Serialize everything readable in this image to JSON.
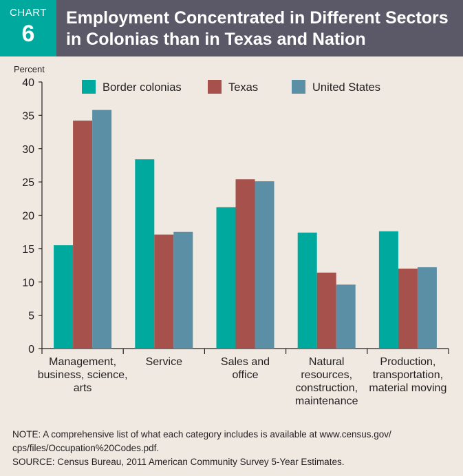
{
  "header": {
    "badge_word": "CHART",
    "badge_number": "6",
    "title_line1": "Employment Concentrated in Different Sectors",
    "title_line2": "in Colonias than in Texas and Nation"
  },
  "colors": {
    "header_bg": "#5b5868",
    "badge_bg": "#00a99d",
    "page_bg": "#efe9e1"
  },
  "chart_data": {
    "type": "bar",
    "ylabel": "Percent",
    "ylim": [
      0,
      40
    ],
    "yticks": [
      0,
      5,
      10,
      15,
      20,
      25,
      30,
      35,
      40
    ],
    "grid": false,
    "legend_position": "top",
    "categories": [
      [
        "Management,",
        "business, science,",
        "arts"
      ],
      [
        "Service"
      ],
      [
        "Sales and",
        "office"
      ],
      [
        "Natural",
        "resources,",
        "construction,",
        "maintenance"
      ],
      [
        "Production,",
        "transportation,",
        "material moving"
      ]
    ],
    "series": [
      {
        "name": "Border colonias",
        "color": "#00a99d",
        "values": [
          15.5,
          28.4,
          21.2,
          17.4,
          17.6
        ]
      },
      {
        "name": "Texas",
        "color": "#a6514b",
        "values": [
          34.2,
          17.1,
          25.4,
          11.4,
          12.0
        ]
      },
      {
        "name": "United States",
        "color": "#5a8fa5",
        "values": [
          35.8,
          17.5,
          25.1,
          9.6,
          12.2
        ]
      }
    ]
  },
  "notes": {
    "note_line1": "NOTE: A comprehensive list of what each category includes is available at www.census.gov/",
    "note_line2": "cps/files/Occupation%20Codes.pdf.",
    "source": "SOURCE: Census Bureau, 2011 American Community Survey 5-Year Estimates."
  }
}
